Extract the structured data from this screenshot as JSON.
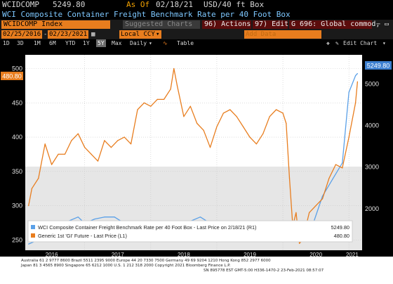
{
  "header": {
    "ticker": "WCIDCOMP",
    "price": "5249.80",
    "as_of_label": "As Of",
    "as_of_date": "02/18/21",
    "unit": "USD/40 ft Box",
    "title": "WCI Composite Container Freight Benchmark Rate per 40 Foot Box"
  },
  "toolbar": {
    "index_field": "WCIDCOMP Index",
    "suggested_charts": "Suggested Charts",
    "actions": "96) Actions",
    "edit": "97) Edit",
    "news": "G 696: Global commod,",
    "minimize": "−",
    "close": "▭"
  },
  "range": {
    "start": "02/25/2016",
    "end": "02/23/2021",
    "currency": "Local CCY",
    "add_data_placeholder": "Add Data"
  },
  "periods": [
    "1D",
    "3D",
    "1M",
    "6M",
    "YTD",
    "1Y",
    "5Y",
    "Max"
  ],
  "selected_period": "5Y",
  "frequency": "Daily",
  "table_label": "Table",
  "edit_chart_label": "Edit Chart",
  "chart_data": {
    "type": "line",
    "x_labels": [
      "2016",
      "2017",
      "2018",
      "2019",
      "2020",
      "2021"
    ],
    "left_axis": {
      "ticks": [
        250,
        300,
        350,
        400,
        450,
        500
      ],
      "range": [
        235,
        520
      ]
    },
    "right_axis": {
      "ticks": [
        2000,
        3000,
        4000,
        5000
      ],
      "range": [
        1000,
        5700
      ]
    },
    "last_price_left": "480.80",
    "last_price_right": "5249.80",
    "legend": [
      {
        "label": "WCI Composite Container Freight Benchmark Rate per 40 Foot Box - Last Price on 2/18/21 (R1)",
        "value": "5249.80",
        "color": "#5aa0e8"
      },
      {
        "label": "Generic 1st 'GI' Future - Last Price (L1)",
        "value": "480.80",
        "color": "#e87d1e"
      }
    ],
    "series": [
      {
        "name": "WCI Composite Container Freight Benchmark Rate per 40 Foot Box - Last Price on 2/18/21 (R1)",
        "axis": "right",
        "color": "#5aa0e8",
        "x": [
          2016.15,
          2016.3,
          2016.45,
          2016.6,
          2016.75,
          2016.9,
          2017.0,
          2017.15,
          2017.3,
          2017.45,
          2017.6,
          2017.75,
          2017.9,
          2018.0,
          2018.15,
          2018.3,
          2018.45,
          2018.6,
          2018.75,
          2018.9,
          2019.0,
          2019.15,
          2019.3,
          2019.45,
          2019.6,
          2019.75,
          2019.9,
          2020.0,
          2020.15,
          2020.3,
          2020.45,
          2020.6,
          2020.75,
          2020.9,
          2021.0,
          2021.1,
          2021.13
        ],
        "y": [
          1150,
          1250,
          1400,
          1350,
          1700,
          1800,
          1650,
          1750,
          1800,
          1800,
          1650,
          1650,
          1700,
          1650,
          1600,
          1550,
          1700,
          1700,
          1800,
          1650,
          1650,
          1600,
          1450,
          1450,
          1500,
          1450,
          1550,
          1700,
          1550,
          1500,
          1600,
          2300,
          2700,
          3100,
          4800,
          5200,
          5249.8
        ]
      },
      {
        "name": "Generic 1st 'GI' Future - Last Price (L1)",
        "axis": "left",
        "color": "#e87d1e",
        "x": [
          2016.15,
          2016.2,
          2016.3,
          2016.4,
          2016.5,
          2016.6,
          2016.7,
          2016.8,
          2016.9,
          2017.0,
          2017.1,
          2017.2,
          2017.3,
          2017.4,
          2017.5,
          2017.6,
          2017.7,
          2017.8,
          2017.9,
          2018.0,
          2018.1,
          2018.2,
          2018.3,
          2018.35,
          2018.4,
          2018.5,
          2018.6,
          2018.7,
          2018.8,
          2018.9,
          2019.0,
          2019.1,
          2019.2,
          2019.3,
          2019.4,
          2019.5,
          2019.6,
          2019.7,
          2019.8,
          2019.9,
          2020.0,
          2020.05,
          2020.1,
          2020.15,
          2020.2,
          2020.25,
          2020.3,
          2020.35,
          2020.4,
          2020.5,
          2020.6,
          2020.7,
          2020.8,
          2020.9,
          2021.0,
          2021.1,
          2021.13
        ],
        "y": [
          300,
          325,
          340,
          390,
          360,
          375,
          375,
          395,
          405,
          385,
          375,
          365,
          395,
          385,
          395,
          400,
          390,
          440,
          450,
          445,
          455,
          455,
          470,
          500,
          475,
          430,
          445,
          420,
          410,
          385,
          415,
          435,
          440,
          430,
          415,
          400,
          390,
          405,
          430,
          440,
          435,
          420,
          340,
          270,
          290,
          245,
          250,
          270,
          290,
          300,
          310,
          340,
          360,
          355,
          400,
          450,
          480.8
        ]
      }
    ]
  },
  "footer": {
    "line1": "Australia 61 2 9777 8600 Brazil 5511 2395 9000 Europe 44 20 7330 7500 Germany 49 69 9204 1210 Hong Kong 852 2977 6000",
    "line2": "Japan 81 3 4565 8900        Singapore 65 6212 1000        U.S. 1 212 318 2000        Copyright 2021 Bloomberg Finance L.P.",
    "line3": "SN 895778 EST  GMT-5:00 H336-1470-2 23-Feb-2021 08:57:07"
  }
}
